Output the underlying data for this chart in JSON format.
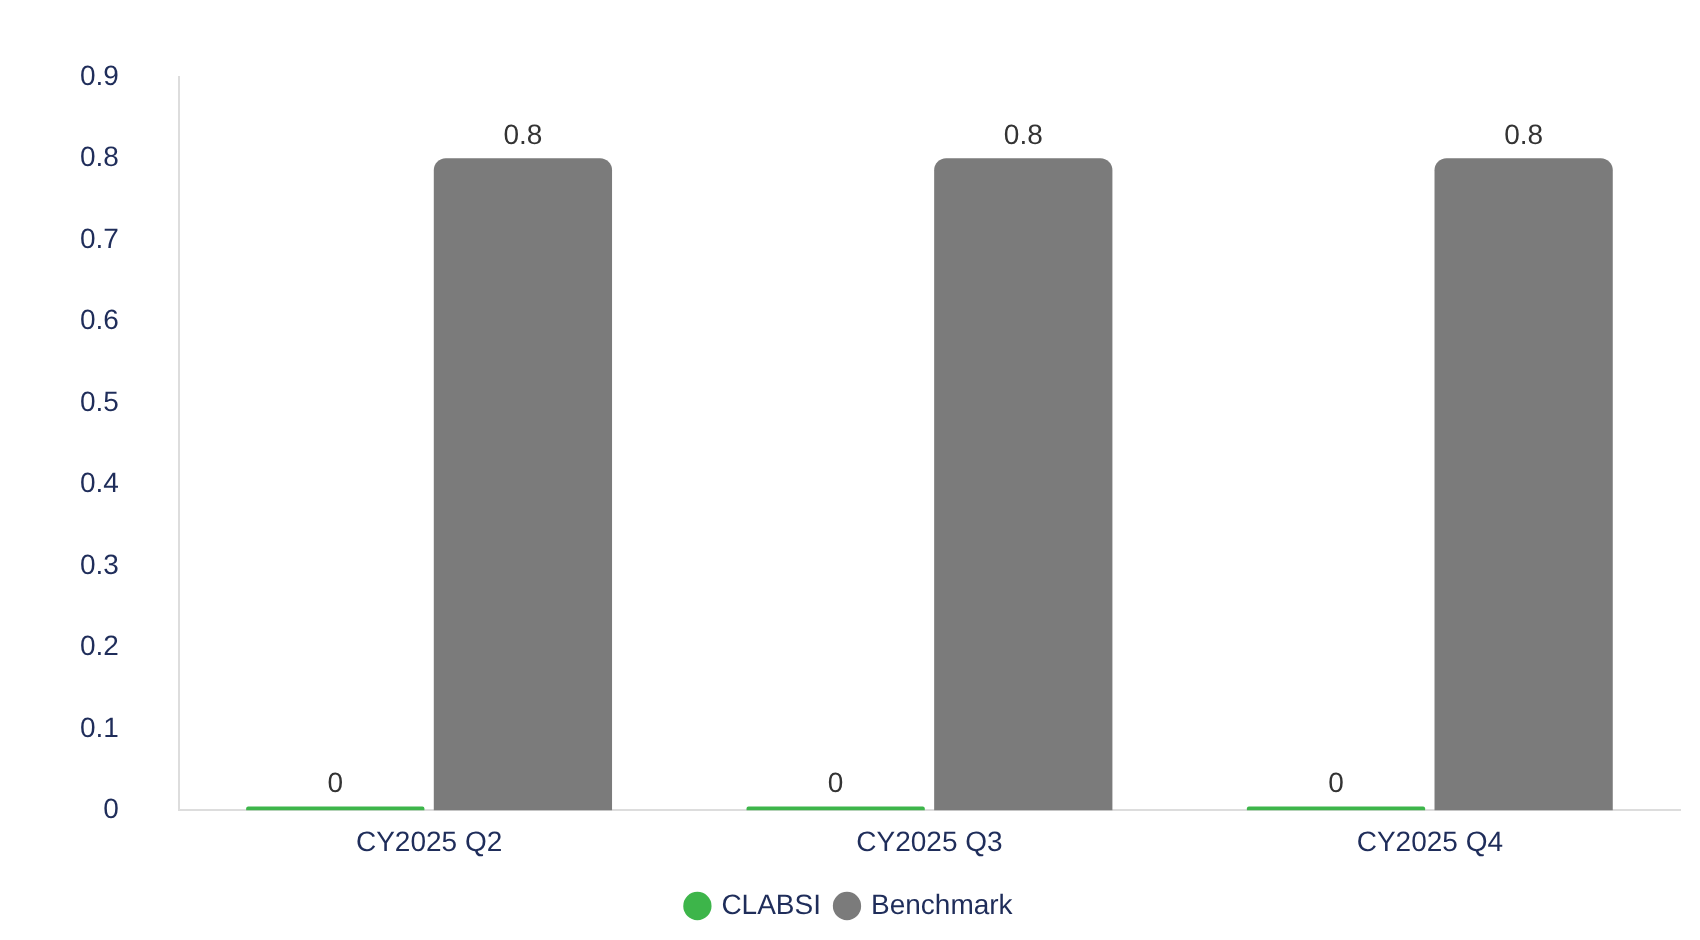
{
  "chart_data": {
    "type": "bar",
    "categories": [
      "CY2025 Q2",
      "CY2025 Q3",
      "CY2025 Q4"
    ],
    "series": [
      {
        "name": "CLABSI",
        "color": "#3db54a",
        "values": [
          0,
          0,
          0
        ]
      },
      {
        "name": "Benchmark",
        "color": "#7b7b7b",
        "values": [
          0.8,
          0.8,
          0.8
        ]
      }
    ],
    "ylim": [
      0,
      0.9
    ],
    "yticks": [
      0,
      0.1,
      0.2,
      0.3,
      0.4,
      0.5,
      0.6,
      0.7,
      0.8,
      0.9
    ],
    "grid": false,
    "legend": "bottom",
    "data_labels": true
  }
}
